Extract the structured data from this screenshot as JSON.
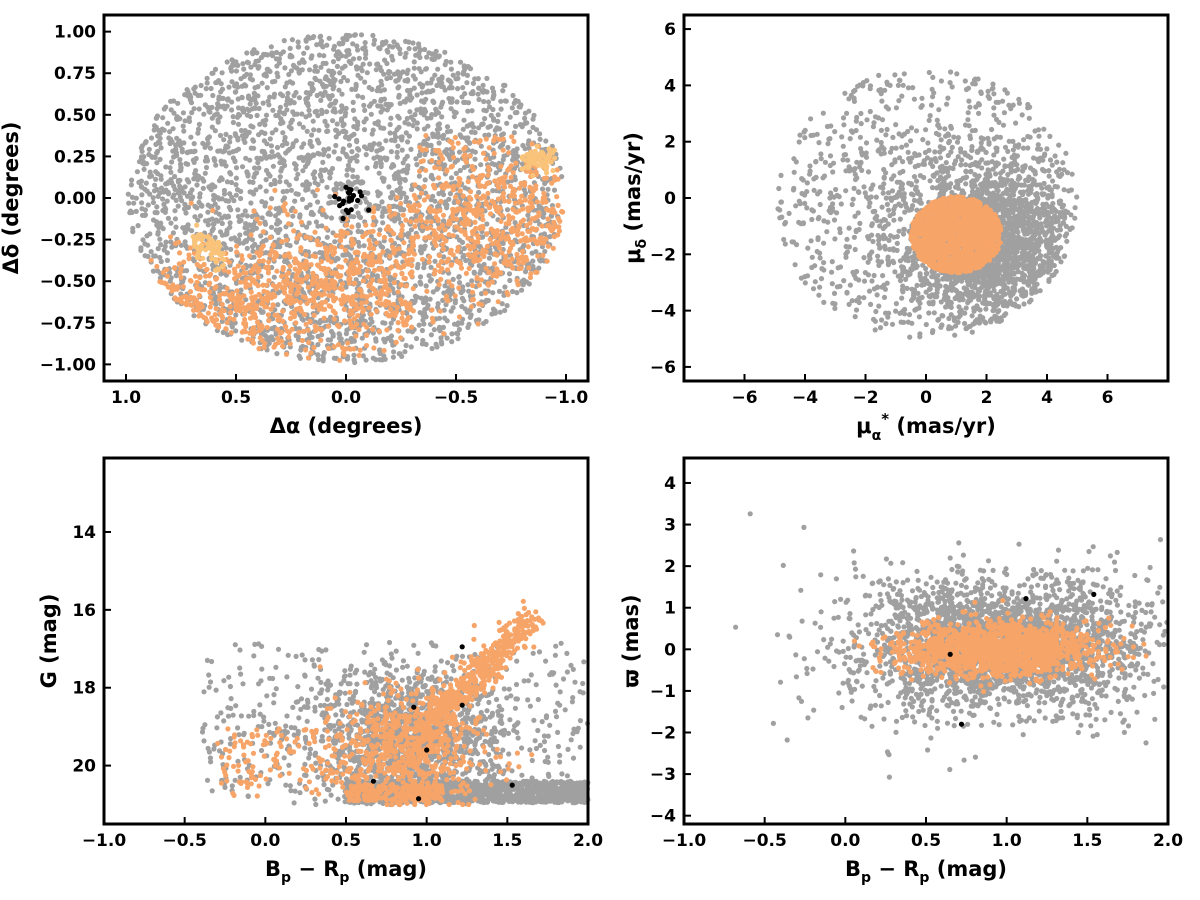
{
  "colors": {
    "field": "#a0a0a0",
    "member": "#f7a468",
    "member_light": "#f9c37a",
    "core": "#000000",
    "frame": "#000000"
  },
  "chart_data": [
    {
      "id": "sky",
      "type": "scatter",
      "xlabel": "Δα (degrees)",
      "ylabel": "Δδ (degrees)",
      "xlim": [
        1.1,
        -1.1
      ],
      "ylim": [
        -1.1,
        1.1
      ],
      "x_inverted": true,
      "xticks": [
        1.0,
        0.5,
        0.0,
        -0.5,
        -1.0
      ],
      "xtick_labels": [
        "1.0",
        "0.5",
        "0.0",
        "−0.5",
        "−1.0"
      ],
      "yticks": [
        1.0,
        0.75,
        0.5,
        0.25,
        0.0,
        -0.25,
        -0.5,
        -0.75,
        -1.0
      ],
      "ytick_labels": [
        "1.00",
        "0.75",
        "0.50",
        "0.25",
        "0.00",
        "−0.25",
        "−0.50",
        "−0.75",
        "−1.00"
      ],
      "series": [
        {
          "color": "field",
          "distribution": "uniform disk",
          "radius_deg": 1.0,
          "approx_count": 3200
        },
        {
          "color": "member",
          "distribution": "lower half of disk, stream-like band",
          "approx_count": 1400
        },
        {
          "color": "core",
          "center": [
            0.0,
            0.0
          ],
          "approx_count": 25
        }
      ],
      "legend": "none",
      "grid": false
    },
    {
      "id": "proper-motion",
      "type": "scatter",
      "xlabel": "μα* (mas/yr)",
      "ylabel": "μδ (mas/yr)",
      "xlim": [
        -8,
        8
      ],
      "ylim": [
        -6.5,
        6.5
      ],
      "xticks": [
        -6,
        -4,
        -2,
        0,
        2,
        4,
        6
      ],
      "xtick_labels": [
        "−6",
        "−4",
        "−2",
        "0",
        "2",
        "4",
        "6"
      ],
      "yticks": [
        6,
        4,
        2,
        0,
        -2,
        -4,
        -6
      ],
      "ytick_labels": [
        "6",
        "4",
        "2",
        "0",
        "−2",
        "−4",
        "−6"
      ],
      "series": [
        {
          "color": "field",
          "center": [
            2.0,
            -1.5
          ],
          "extent_x": [
            -5.0,
            5.0
          ],
          "extent_y": [
            -5.0,
            4.8
          ],
          "approx_count": 3000
        },
        {
          "color": "member",
          "center": [
            1.0,
            -1.3
          ],
          "radius": 1.5,
          "approx_count": 1500
        }
      ],
      "legend": "none",
      "grid": false
    },
    {
      "id": "cmd",
      "type": "scatter",
      "xlabel": "Bp − Rp (mag)",
      "ylabel": "G (mag)",
      "xlim": [
        -1.0,
        2.0
      ],
      "ylim": [
        21.5,
        12.1
      ],
      "y_inverted": true,
      "xticks": [
        -1.0,
        -0.5,
        0.0,
        0.5,
        1.0,
        1.5,
        2.0
      ],
      "xtick_labels": [
        "−1.0",
        "−0.5",
        "0.0",
        "0.5",
        "1.0",
        "1.5",
        "2.0"
      ],
      "yticks": [
        20,
        18,
        16,
        14
      ],
      "ytick_labels": [
        "20",
        "18",
        "16",
        "14"
      ],
      "series": [
        {
          "color": "field",
          "approx_count": 3000
        },
        {
          "color": "member",
          "approx_count": 1400
        },
        {
          "color": "core",
          "points": [
            [
              0.95,
              20.85
            ],
            [
              1.53,
              20.5
            ],
            [
              0.67,
              20.4
            ],
            [
              1.22,
              16.95
            ],
            [
              0.92,
              18.5
            ],
            [
              1.0,
              19.6
            ],
            [
              1.22,
              18.45
            ]
          ]
        }
      ],
      "legend": "none",
      "grid": false
    },
    {
      "id": "parallax",
      "type": "scatter",
      "xlabel": "Bp − Rp (mag)",
      "ylabel": "ϖ (mas)",
      "xlim": [
        -1.0,
        2.0
      ],
      "ylim": [
        -4.2,
        4.6
      ],
      "xticks": [
        -1.0,
        -0.5,
        0.0,
        0.5,
        1.0,
        1.5,
        2.0
      ],
      "xtick_labels": [
        "−1.0",
        "−0.5",
        "0.0",
        "0.5",
        "1.0",
        "1.5",
        "2.0"
      ],
      "yticks": [
        4,
        3,
        2,
        1,
        0,
        -1,
        -2,
        -3,
        -4
      ],
      "ytick_labels": [
        "4",
        "3",
        "2",
        "1",
        "0",
        "−1",
        "−2",
        "−3",
        "−4"
      ],
      "series": [
        {
          "color": "field",
          "approx_count": 2800
        },
        {
          "color": "member",
          "approx_count": 1400
        },
        {
          "color": "core",
          "points": [
            [
              1.12,
              1.22
            ],
            [
              1.54,
              1.32
            ],
            [
              0.72,
              -1.8
            ],
            [
              0.65,
              -0.12
            ]
          ]
        }
      ],
      "legend": "none",
      "grid": false
    }
  ]
}
